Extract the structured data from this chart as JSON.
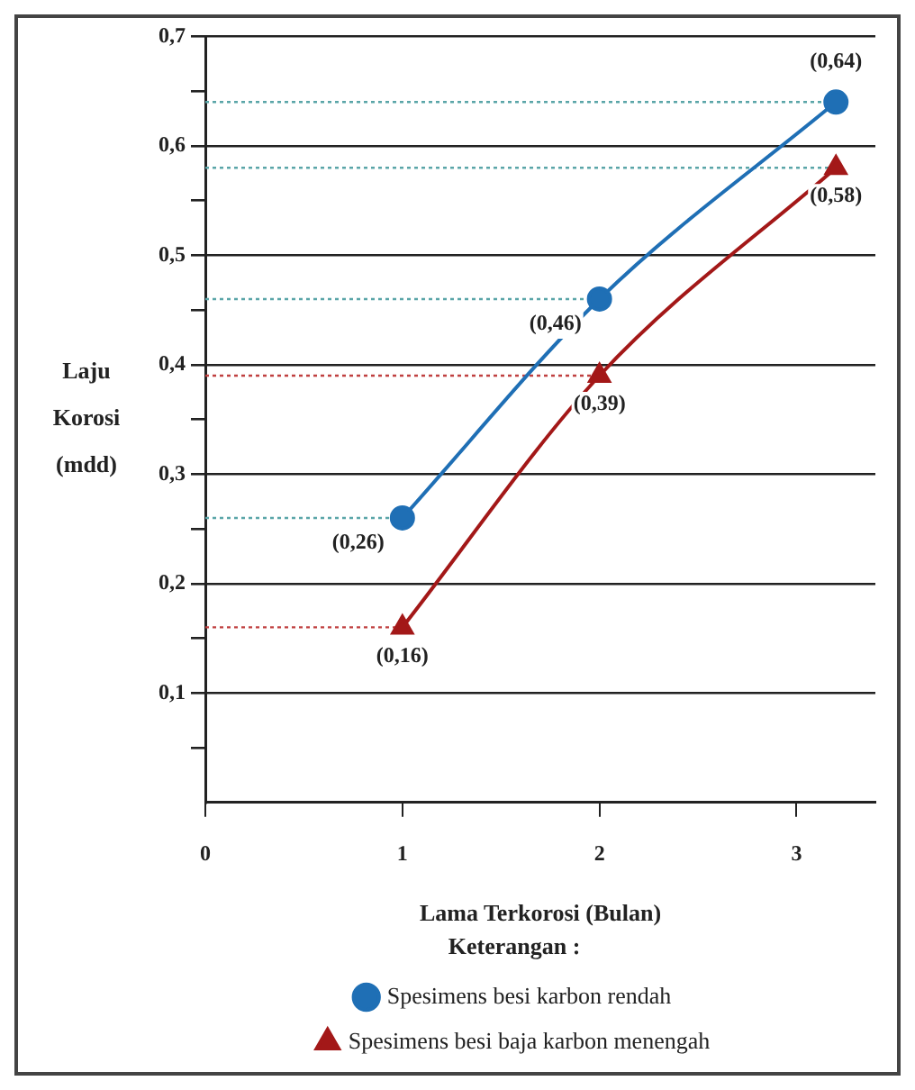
{
  "chart_data": {
    "type": "line",
    "xlabel": "Lama Terkorosi (Bulan)",
    "ylabel": "Laju Korosi (mdd)",
    "legend_title": "Keterangan :",
    "x": [
      1,
      2,
      3.2
    ],
    "series": [
      {
        "name": "Spesimens besi karbon rendah",
        "color": "#1f6fb5",
        "marker": "circle",
        "values": [
          0.26,
          0.46,
          0.64
        ],
        "value_labels": [
          "(0,26)",
          "(0,46)",
          "(0,64)"
        ]
      },
      {
        "name": "Spesimens besi baja karbon menengah",
        "color": "#a31818",
        "marker": "triangle",
        "values": [
          0.16,
          0.39,
          0.58
        ],
        "value_labels": [
          "(0,16)",
          "(0,39)",
          "(0,58)"
        ]
      }
    ],
    "xlim": [
      0,
      3.4
    ],
    "xticks": [
      0,
      1,
      2,
      3
    ],
    "ylim": [
      0,
      0.7
    ],
    "yticks": [
      {
        "value": 0.05,
        "label": null
      },
      {
        "value": 0.1,
        "label": "0,1"
      },
      {
        "value": 0.15,
        "label": null
      },
      {
        "value": 0.2,
        "label": "0,2"
      },
      {
        "value": 0.25,
        "label": null
      },
      {
        "value": 0.3,
        "label": "0,3"
      },
      {
        "value": 0.35,
        "label": null
      },
      {
        "value": 0.4,
        "label": "0,4"
      },
      {
        "value": 0.45,
        "label": null
      },
      {
        "value": 0.5,
        "label": "0,5"
      },
      {
        "value": 0.55,
        "label": null
      },
      {
        "value": 0.6,
        "label": "0,6"
      },
      {
        "value": 0.65,
        "label": null
      },
      {
        "value": 0.7,
        "label": "0,7"
      }
    ],
    "grid": "y",
    "legend": "bottom",
    "line_style": "solid",
    "ref_lines": [
      {
        "axis": "y",
        "value": 0.64,
        "color": "#5aa5a8",
        "line_style": "dotted"
      },
      {
        "axis": "y",
        "value": 0.58,
        "color": "#5aa5a8",
        "line_style": "dotted"
      },
      {
        "axis": "y",
        "value": 0.46,
        "color": "#5aa5a8",
        "line_style": "dotted"
      },
      {
        "axis": "y",
        "value": 0.39,
        "color": "#c04040",
        "line_style": "dotted"
      },
      {
        "axis": "y",
        "value": 0.26,
        "color": "#5aa5a8",
        "line_style": "dotted"
      },
      {
        "axis": "y",
        "value": 0.16,
        "color": "#c04040",
        "line_style": "dotted"
      }
    ]
  }
}
